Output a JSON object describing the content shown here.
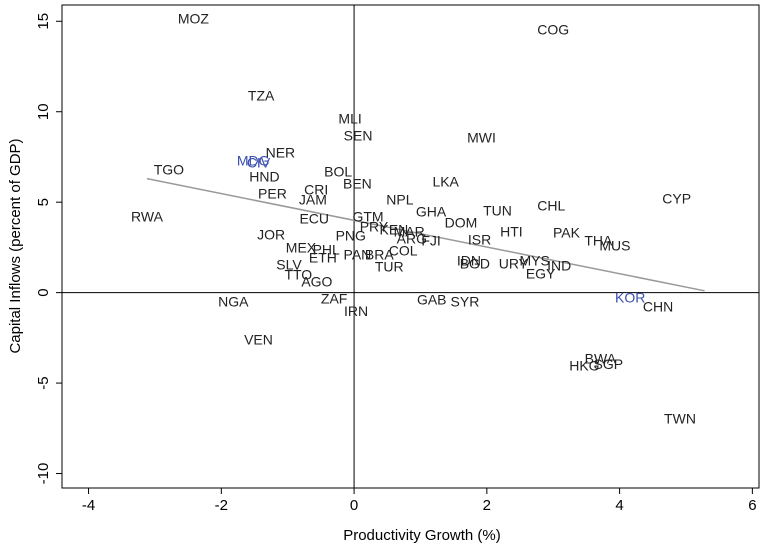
{
  "chart_data": {
    "type": "scatter",
    "x_label": "Productivity Growth (%)",
    "y_label": "Capital Inflows (percent of GDP)",
    "xlim": [
      -4.4,
      6.1
    ],
    "ylim": [
      -10.8,
      15.9
    ],
    "xticks": [
      -4,
      -2,
      0,
      2,
      4,
      6
    ],
    "yticks": [
      -10,
      -5,
      0,
      5,
      10,
      15
    ],
    "labels": [
      "MOZ",
      "COG",
      "TZA",
      "MLI",
      "SEN",
      "MWI",
      "NER",
      "MDG",
      "CIV",
      "TGO",
      "BOL",
      "HND",
      "BEN",
      "LKA",
      "CRI",
      "PER",
      "NPL",
      "JAM",
      "CHL",
      "CYP",
      "GHA",
      "TUN",
      "RWA",
      "GTM",
      "ECU",
      "DOM",
      "PRY",
      "KEN",
      "MAR",
      "HTI",
      "PAK",
      "JOR",
      "PNG",
      "THA",
      "ISR",
      "ARG",
      "FJI",
      "MUS",
      "MEX",
      "PHL",
      "COL",
      "PAN",
      "BRA",
      "ETH",
      "IDN",
      "BGD",
      "MYS",
      "URY",
      "IND",
      "SLV",
      "TUR",
      "EGY",
      "TTO",
      "AGO",
      "KOR",
      "NGA",
      "ZAF",
      "GAB",
      "SYR",
      "CHN",
      "IRN",
      "VEN",
      "BWA",
      "HKG",
      "SGP",
      "TWN"
    ],
    "x": [
      -2.42,
      3.0,
      -1.4,
      -0.06,
      0.06,
      1.92,
      -1.11,
      -1.52,
      -1.44,
      -2.79,
      -0.24,
      -1.35,
      0.05,
      1.38,
      -0.57,
      -1.23,
      0.69,
      -0.62,
      2.97,
      4.86,
      1.16,
      2.16,
      -3.12,
      0.21,
      -0.6,
      1.61,
      0.3,
      0.6,
      0.83,
      2.37,
      3.2,
      -1.25,
      -0.05,
      3.68,
      1.89,
      0.87,
      1.16,
      3.93,
      -0.8,
      -0.42,
      0.74,
      0.05,
      0.38,
      -0.47,
      1.73,
      1.82,
      2.72,
      2.4,
      3.09,
      -0.98,
      0.53,
      2.81,
      -0.84,
      -0.56,
      4.16,
      -1.82,
      -0.3,
      1.17,
      1.67,
      4.58,
      0.03,
      -1.44,
      3.71,
      3.47,
      3.83,
      4.91
    ],
    "y": [
      15.08,
      14.47,
      10.83,
      9.56,
      8.62,
      8.51,
      7.68,
      7.24,
      7.13,
      6.74,
      6.63,
      6.35,
      5.97,
      6.08,
      5.64,
      5.41,
      5.08,
      5.08,
      4.75,
      5.14,
      4.42,
      4.48,
      4.14,
      4.14,
      4.03,
      3.81,
      3.59,
      3.42,
      3.31,
      3.31,
      3.26,
      3.15,
      3.09,
      2.82,
      2.87,
      2.93,
      2.82,
      2.54,
      2.43,
      2.32,
      2.27,
      2.04,
      2.04,
      1.88,
      1.71,
      1.55,
      1.71,
      1.55,
      1.44,
      1.49,
      1.38,
      0.99,
      0.94,
      0.55,
      -0.33,
      -0.55,
      -0.39,
      -0.44,
      -0.55,
      -0.83,
      -1.1,
      -2.65,
      -3.7,
      -4.09,
      -4.03,
      -7.02
    ],
    "colors": [
      "#222",
      "#222",
      "#222",
      "#222",
      "#222",
      "#222",
      "#222",
      "#3a4fb0",
      "#3a4fb0",
      "#222",
      "#222",
      "#222",
      "#222",
      "#222",
      "#222",
      "#222",
      "#222",
      "#222",
      "#222",
      "#222",
      "#222",
      "#222",
      "#222",
      "#222",
      "#222",
      "#222",
      "#222",
      "#222",
      "#222",
      "#222",
      "#222",
      "#222",
      "#222",
      "#222",
      "#222",
      "#222",
      "#222",
      "#222",
      "#222",
      "#222",
      "#222",
      "#222",
      "#222",
      "#222",
      "#222",
      "#222",
      "#222",
      "#222",
      "#222",
      "#222",
      "#222",
      "#222",
      "#222",
      "#222",
      "#3a4fb0",
      "#222",
      "#222",
      "#222",
      "#222",
      "#222",
      "#222",
      "#222",
      "#222",
      "#222",
      "#222",
      "#222"
    ],
    "fit_line": {
      "x": [
        -3.12,
        5.28
      ],
      "y": [
        6.3,
        0.1
      ],
      "color": "#999999"
    }
  }
}
